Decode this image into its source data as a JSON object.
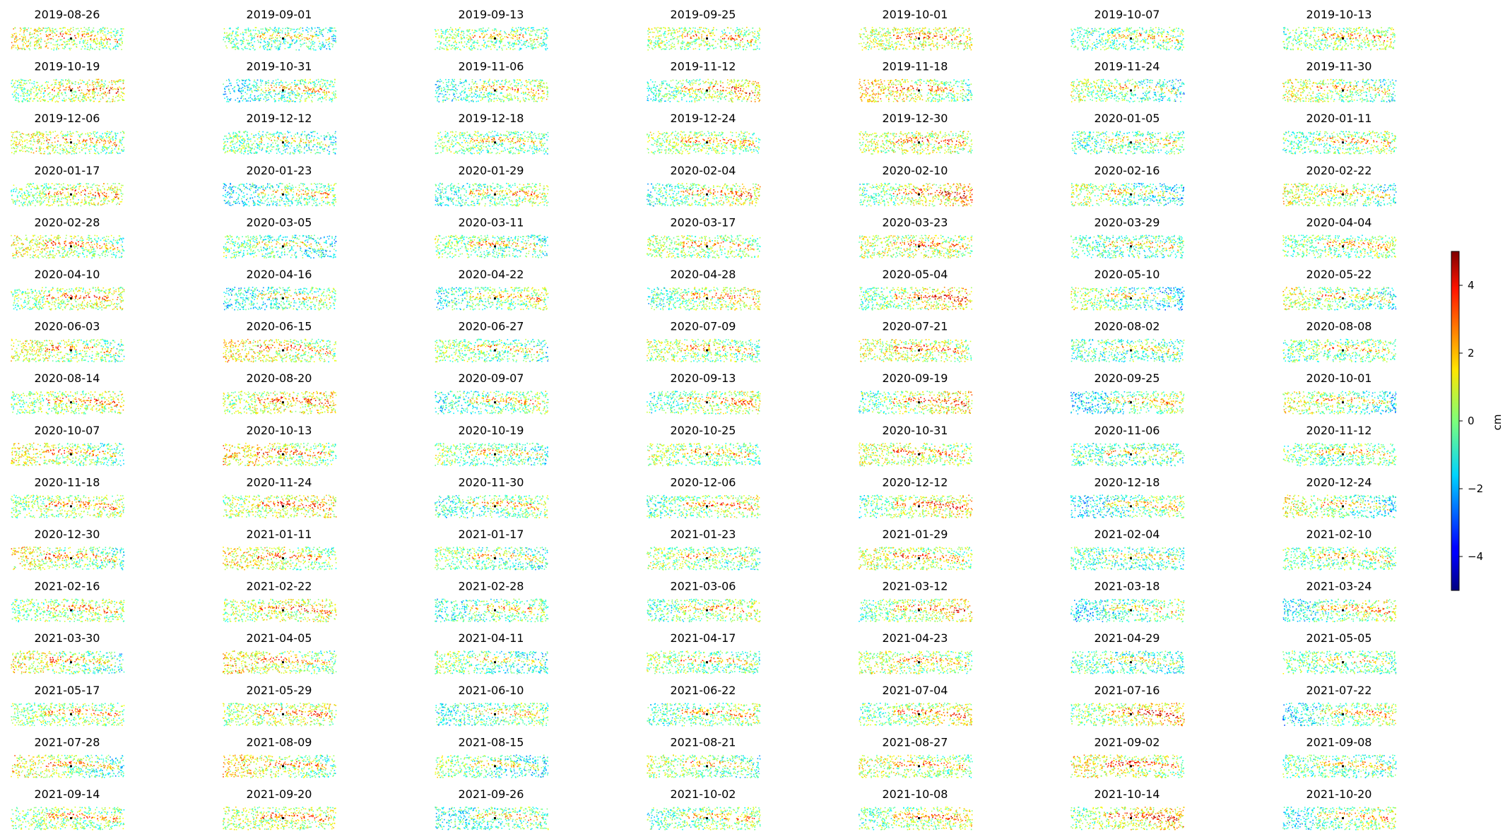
{
  "chart_data": {
    "type": "scatter",
    "description_kind": "small-multiples",
    "panels": [
      "2019-08-26",
      "2019-09-01",
      "2019-09-13",
      "2019-09-25",
      "2019-10-01",
      "2019-10-07",
      "2019-10-13",
      "2019-10-19",
      "2019-10-31",
      "2019-11-06",
      "2019-11-12",
      "2019-11-18",
      "2019-11-24",
      "2019-11-30",
      "2019-12-06",
      "2019-12-12",
      "2019-12-18",
      "2019-12-24",
      "2019-12-30",
      "2020-01-05",
      "2020-01-11",
      "2020-01-17",
      "2020-01-23",
      "2020-01-29",
      "2020-02-04",
      "2020-02-10",
      "2020-02-16",
      "2020-02-22",
      "2020-02-28",
      "2020-03-05",
      "2020-03-11",
      "2020-03-17",
      "2020-03-23",
      "2020-03-29",
      "2020-04-04",
      "2020-04-10",
      "2020-04-16",
      "2020-04-22",
      "2020-04-28",
      "2020-05-04",
      "2020-05-10",
      "2020-05-22",
      "2020-06-03",
      "2020-06-15",
      "2020-06-27",
      "2020-07-09",
      "2020-07-21",
      "2020-08-02",
      "2020-08-08",
      "2020-08-14",
      "2020-08-20",
      "2020-09-07",
      "2020-09-13",
      "2020-09-19",
      "2020-09-25",
      "2020-10-01",
      "2020-10-07",
      "2020-10-13",
      "2020-10-19",
      "2020-10-25",
      "2020-10-31",
      "2020-11-06",
      "2020-11-12",
      "2020-11-18",
      "2020-11-24",
      "2020-11-30",
      "2020-12-06",
      "2020-12-12",
      "2020-12-18",
      "2020-12-24",
      "2020-12-30",
      "2021-01-11",
      "2021-01-17",
      "2021-01-23",
      "2021-01-29",
      "2021-02-04",
      "2021-02-10",
      "2021-02-16",
      "2021-02-22",
      "2021-02-28",
      "2021-03-06",
      "2021-03-12",
      "2021-03-18",
      "2021-03-24",
      "2021-03-30",
      "2021-04-05",
      "2021-04-11",
      "2021-04-17",
      "2021-04-23",
      "2021-04-29",
      "2021-05-05",
      "2021-05-17",
      "2021-05-29",
      "2021-06-10",
      "2021-06-22",
      "2021-07-04",
      "2021-07-16",
      "2021-07-22",
      "2021-07-28",
      "2021-08-09",
      "2021-08-15",
      "2021-08-21",
      "2021-08-27",
      "2021-09-02",
      "2021-09-08",
      "2021-09-14",
      "2021-09-20",
      "2021-09-26",
      "2021-10-02",
      "2021-10-08",
      "2021-10-14",
      "2021-10-20"
    ],
    "colorbar": {
      "label": "cm",
      "range": [
        -5,
        5
      ],
      "ticks": [
        4,
        2,
        0,
        -2,
        -4
      ],
      "tick_labels": [
        "4",
        "2",
        "0",
        "−2",
        "−4"
      ],
      "colormap": "jet"
    },
    "axes_visible": false
  }
}
